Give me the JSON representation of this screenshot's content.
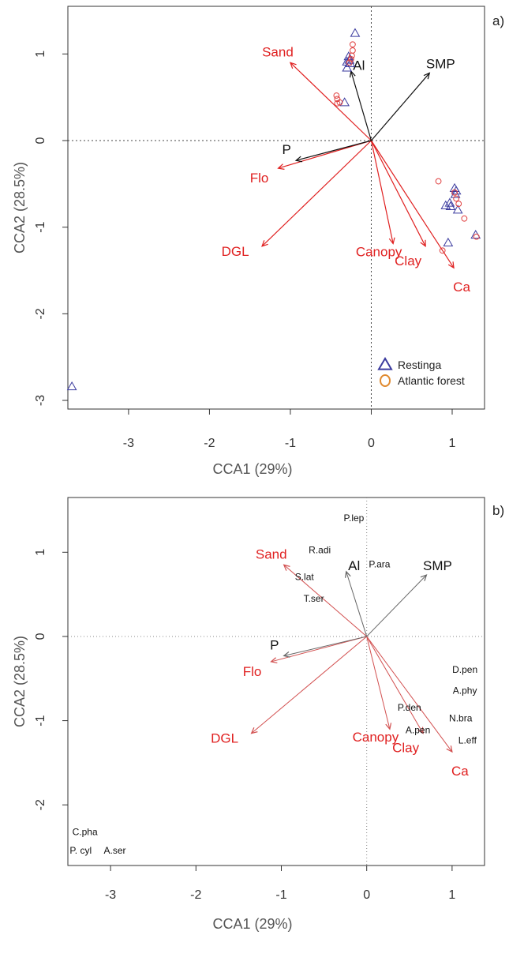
{
  "chart_data": [
    {
      "type": "scatter",
      "panel_label": "a)",
      "xlabel": "CCA1 (29%)",
      "ylabel": "CCA2 (28.5%)",
      "xlim": [
        -3.75,
        1.4
      ],
      "ylim": [
        -3.1,
        1.55
      ],
      "xticks": [
        -3,
        -2,
        -1,
        0,
        1
      ],
      "yticks": [
        -3,
        -2,
        -1,
        0,
        1
      ],
      "reference_lines": {
        "x": 0,
        "y": 0,
        "style": "dotted"
      },
      "colors": {
        "env": "#e02020",
        "extra": "#111111",
        "restinga": "#3a3a9e",
        "atlantic": "#e04040",
        "legend_atlantic": "#e08a30"
      },
      "legend": {
        "placement": "bottom-right",
        "entries": [
          {
            "label": "Restinga",
            "marker": "triangle"
          },
          {
            "label": "Atlantic forest",
            "marker": "circle"
          }
        ]
      },
      "vectors": [
        {
          "label": "Sand",
          "x": -1.0,
          "y": 0.9,
          "color": "env"
        },
        {
          "label": "Flo",
          "x": -1.15,
          "y": -0.32,
          "color": "env"
        },
        {
          "label": "DGL",
          "x": -1.35,
          "y": -1.22,
          "color": "env"
        },
        {
          "label": "Canopy",
          "x": 0.27,
          "y": -1.19,
          "color": "env"
        },
        {
          "label": "Clay",
          "x": 0.67,
          "y": -1.22,
          "color": "env"
        },
        {
          "label": "Ca",
          "x": 1.02,
          "y": -1.47,
          "color": "env"
        },
        {
          "label": "Al",
          "x": -0.25,
          "y": 0.8,
          "color": "extra"
        },
        {
          "label": "SMP",
          "x": 0.72,
          "y": 0.78,
          "color": "extra"
        },
        {
          "label": "P",
          "x": -0.93,
          "y": -0.23,
          "color": "extra"
        }
      ],
      "series": [
        {
          "name": "Restinga",
          "marker": "triangle",
          "points": [
            {
              "x": -0.2,
              "y": 1.24
            },
            {
              "x": -0.28,
              "y": 0.97
            },
            {
              "x": -0.27,
              "y": 0.93
            },
            {
              "x": -0.3,
              "y": 0.91
            },
            {
              "x": -0.26,
              "y": 0.89
            },
            {
              "x": -0.3,
              "y": 0.84
            },
            {
              "x": -0.33,
              "y": 0.44
            },
            {
              "x": 1.03,
              "y": -0.55
            },
            {
              "x": 1.05,
              "y": -0.58
            },
            {
              "x": 1.04,
              "y": -0.62
            },
            {
              "x": 0.97,
              "y": -0.72
            },
            {
              "x": 0.92,
              "y": -0.75
            },
            {
              "x": 0.98,
              "y": -0.76
            },
            {
              "x": 1.07,
              "y": -0.8
            },
            {
              "x": 1.29,
              "y": -1.09
            },
            {
              "x": 0.95,
              "y": -1.18
            },
            {
              "x": -3.7,
              "y": -2.84
            }
          ]
        },
        {
          "name": "Atlantic forest",
          "marker": "circle",
          "points": [
            {
              "x": -0.23,
              "y": 1.11
            },
            {
              "x": -0.23,
              "y": 1.04
            },
            {
              "x": -0.24,
              "y": 0.98
            },
            {
              "x": -0.25,
              "y": 0.94
            },
            {
              "x": -0.27,
              "y": 0.9
            },
            {
              "x": -0.43,
              "y": 0.52
            },
            {
              "x": -0.42,
              "y": 0.48
            },
            {
              "x": -0.39,
              "y": 0.44
            },
            {
              "x": -0.42,
              "y": 0.43
            },
            {
              "x": 0.83,
              "y": -0.47
            },
            {
              "x": 1.03,
              "y": -0.6
            },
            {
              "x": 1.05,
              "y": -0.67
            },
            {
              "x": 1.08,
              "y": -0.73
            },
            {
              "x": 1.15,
              "y": -0.9
            },
            {
              "x": 1.3,
              "y": -1.11
            },
            {
              "x": 0.88,
              "y": -1.27
            }
          ]
        }
      ]
    },
    {
      "type": "scatter",
      "panel_label": "b)",
      "xlabel": "CCA1 (29%)",
      "ylabel": "CCA2 (28.5%)",
      "xlim": [
        -3.5,
        1.38
      ],
      "ylim": [
        -2.72,
        1.65
      ],
      "xticks": [
        -3,
        -2,
        -1,
        0,
        1
      ],
      "yticks": [
        -2,
        -1,
        0,
        1
      ],
      "reference_lines": {
        "x": 0,
        "y": 0,
        "style": "dotted"
      },
      "colors": {
        "env": "#e02020",
        "extra": "#111111",
        "arrow_env": "#d25050",
        "arrow_extra": "#666666"
      },
      "vectors": [
        {
          "label": "Sand",
          "x": -0.97,
          "y": 0.85,
          "color": "env"
        },
        {
          "label": "Flo",
          "x": -1.12,
          "y": -0.3,
          "color": "env"
        },
        {
          "label": "DGL",
          "x": -1.35,
          "y": -1.15,
          "color": "env"
        },
        {
          "label": "Canopy",
          "x": 0.27,
          "y": -1.1,
          "color": "env"
        },
        {
          "label": "Clay",
          "x": 0.66,
          "y": -1.15,
          "color": "env"
        },
        {
          "label": "Ca",
          "x": 1.0,
          "y": -1.37,
          "color": "env"
        },
        {
          "label": "Al",
          "x": -0.24,
          "y": 0.77,
          "color": "extra"
        },
        {
          "label": "SMP",
          "x": 0.7,
          "y": 0.73,
          "color": "extra"
        },
        {
          "label": "P",
          "x": -0.97,
          "y": -0.23,
          "color": "extra"
        }
      ],
      "species": [
        {
          "label": "P.lep",
          "x": -0.15,
          "y": 1.4
        },
        {
          "label": "R.adi",
          "x": -0.55,
          "y": 1.02
        },
        {
          "label": "P.ara",
          "x": 0.15,
          "y": 0.85
        },
        {
          "label": "S.lat",
          "x": -0.73,
          "y": 0.7
        },
        {
          "label": "T.ser",
          "x": -0.62,
          "y": 0.44
        },
        {
          "label": "D.pen",
          "x": 1.15,
          "y": -0.4
        },
        {
          "label": "A.phy",
          "x": 1.15,
          "y": -0.65
        },
        {
          "label": "P.den",
          "x": 0.5,
          "y": -0.85
        },
        {
          "label": "N.bra",
          "x": 1.1,
          "y": -0.98
        },
        {
          "label": "A.pen",
          "x": 0.6,
          "y": -1.12
        },
        {
          "label": "L.eff",
          "x": 1.18,
          "y": -1.24
        },
        {
          "label": "C.pha",
          "x": -3.3,
          "y": -2.33
        },
        {
          "label": "P. cyl",
          "x": -3.35,
          "y": -2.55
        },
        {
          "label": "A.ser",
          "x": -2.95,
          "y": -2.55
        }
      ]
    }
  ]
}
